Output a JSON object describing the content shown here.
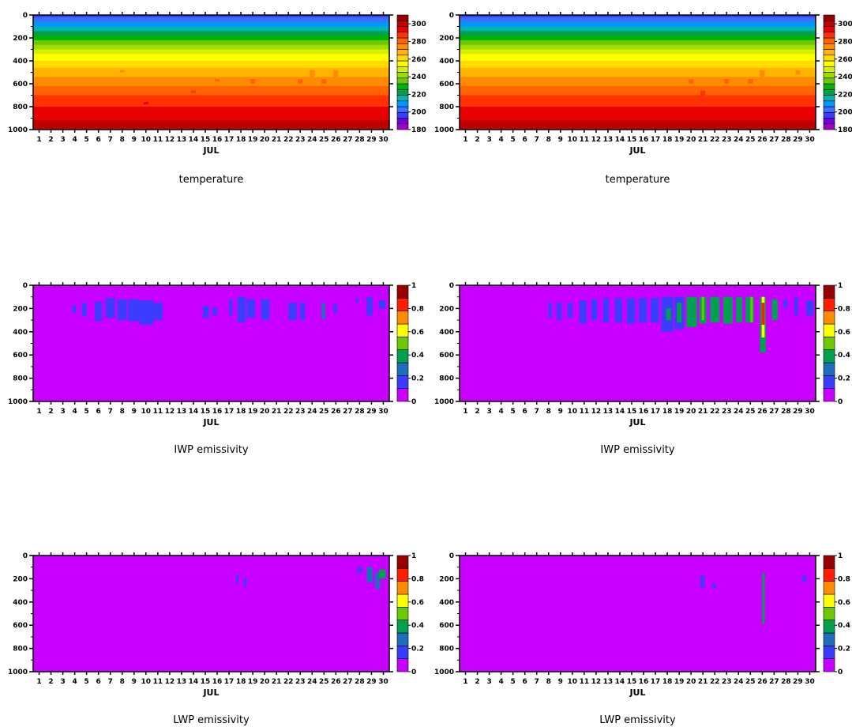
{
  "palettes": {
    "temperature": [
      "#a000c8",
      "#6e00dc",
      "#3c3cff",
      "#3c6eff",
      "#0096ff",
      "#00b4b4",
      "#00a050",
      "#00b400",
      "#6ec800",
      "#a0dc00",
      "#d2f000",
      "#ffff00",
      "#ffdc00",
      "#ffb400",
      "#ff8c00",
      "#ff6400",
      "#ff3200",
      "#e60000",
      "#be0000",
      "#960000"
    ],
    "emissivity": [
      "#c800ff",
      "#3c3cff",
      "#1e6ebe",
      "#00a050",
      "#6ec800",
      "#ffff00",
      "#ff8c00",
      "#ff1e00",
      "#960000"
    ]
  },
  "chart_data": [
    {
      "type": "heatmap",
      "title": "temperature",
      "xlabel": "JUL",
      "ylabel": "",
      "x_ticks": [
        "1",
        "2",
        "3",
        "4",
        "5",
        "6",
        "7",
        "8",
        "9",
        "10",
        "11",
        "12",
        "13",
        "14",
        "15",
        "16",
        "17",
        "18",
        "19",
        "20",
        "21",
        "22",
        "23",
        "24",
        "25",
        "26",
        "27",
        "28",
        "29",
        "30"
      ],
      "y_ticks": [
        "0",
        "200",
        "400",
        "600",
        "800",
        "1000"
      ],
      "ylim": [
        1000,
        0
      ],
      "xlim": [
        0.5,
        30.5
      ],
      "colorbar": {
        "ticks": [
          "180",
          "200",
          "220",
          "240",
          "260",
          "280",
          "300"
        ],
        "range": [
          180,
          310
        ],
        "step": 6.5
      },
      "field": "temperature",
      "perturb": [
        [
          8,
          480,
          20
        ],
        [
          16,
          560,
          20
        ],
        [
          19,
          560,
          40
        ],
        [
          23,
          560,
          40
        ],
        [
          24,
          480,
          80
        ],
        [
          25,
          560,
          40
        ],
        [
          26,
          480,
          80
        ],
        [
          10,
          760,
          20
        ],
        [
          14,
          660,
          20
        ]
      ]
    },
    {
      "type": "heatmap",
      "title": "temperature",
      "xlabel": "JUL",
      "ylabel": "",
      "x_ticks": [
        "1",
        "2",
        "3",
        "4",
        "5",
        "6",
        "7",
        "8",
        "9",
        "10",
        "11",
        "12",
        "13",
        "14",
        "15",
        "16",
        "17",
        "18",
        "19",
        "20",
        "21",
        "22",
        "23",
        "24",
        "25",
        "26",
        "27",
        "28",
        "29",
        "30"
      ],
      "y_ticks": [
        "0",
        "200",
        "400",
        "600",
        "800",
        "1000"
      ],
      "ylim": [
        1000,
        0
      ],
      "xlim": [
        0.5,
        30.5
      ],
      "colorbar": {
        "ticks": [
          "180",
          "200",
          "220",
          "240",
          "260",
          "280",
          "300"
        ],
        "range": [
          180,
          310
        ],
        "step": 6.5
      },
      "field": "temperature",
      "perturb": [
        [
          20,
          560,
          40
        ],
        [
          21,
          660,
          40
        ],
        [
          23,
          560,
          40
        ],
        [
          25,
          560,
          40
        ],
        [
          26,
          480,
          80
        ],
        [
          29,
          480,
          40
        ]
      ]
    },
    {
      "type": "heatmap",
      "title": "IWP emissivity",
      "xlabel": "JUL",
      "ylabel": "",
      "x_ticks": [
        "1",
        "2",
        "3",
        "4",
        "5",
        "6",
        "7",
        "8",
        "9",
        "10",
        "11",
        "12",
        "13",
        "14",
        "15",
        "16",
        "17",
        "18",
        "19",
        "20",
        "21",
        "22",
        "23",
        "24",
        "25",
        "26",
        "27",
        "28",
        "29",
        "30"
      ],
      "y_ticks": [
        "0",
        "200",
        "400",
        "600",
        "800",
        "1000"
      ],
      "ylim": [
        1000,
        0
      ],
      "xlim": [
        0.5,
        30.5
      ],
      "colorbar": {
        "ticks": [
          "0",
          "0.2",
          "0.4",
          "0.6",
          "0.8",
          "1"
        ],
        "range": [
          0,
          1
        ],
        "step": 0.1111
      },
      "field": "emissivity",
      "cloud_patches": [
        {
          "x": [
            3.8,
            4.1
          ],
          "p": [
            170,
            240
          ],
          "v": 0.15
        },
        {
          "x": [
            4.6,
            5.0
          ],
          "p": [
            150,
            270
          ],
          "v": 0.15
        },
        {
          "x": [
            5.7,
            6.3
          ],
          "p": [
            140,
            310
          ],
          "v": 0.15
        },
        {
          "x": [
            6.6,
            7.4
          ],
          "p": [
            110,
            280
          ],
          "v": 0.15
        },
        {
          "x": [
            7.6,
            8.4
          ],
          "p": [
            120,
            300
          ],
          "v": 0.15
        },
        {
          "x": [
            8.5,
            9.5
          ],
          "p": [
            120,
            310
          ],
          "v": 0.15
        },
        {
          "x": [
            9.5,
            10.6
          ],
          "p": [
            130,
            340
          ],
          "v": 0.15
        },
        {
          "x": [
            10.5,
            11.4
          ],
          "p": [
            150,
            300
          ],
          "v": 0.15
        },
        {
          "x": [
            14.8,
            15.3
          ],
          "p": [
            180,
            280
          ],
          "v": 0.15
        },
        {
          "x": [
            15.6,
            16.0
          ],
          "p": [
            190,
            260
          ],
          "v": 0.15
        },
        {
          "x": [
            17.0,
            17.3
          ],
          "p": [
            120,
            260
          ],
          "v": 0.15
        },
        {
          "x": [
            17.7,
            18.4
          ],
          "p": [
            100,
            320
          ],
          "v": 0.15
        },
        {
          "x": [
            18.5,
            19.2
          ],
          "p": [
            120,
            280
          ],
          "v": 0.15
        },
        {
          "x": [
            19.7,
            20.4
          ],
          "p": [
            120,
            300
          ],
          "v": 0.15
        },
        {
          "x": [
            22.0,
            22.7
          ],
          "p": [
            150,
            300
          ],
          "v": 0.15
        },
        {
          "x": [
            23.0,
            23.4
          ],
          "p": [
            150,
            300
          ],
          "v": 0.15
        },
        {
          "x": [
            24.8,
            25.1
          ],
          "p": [
            150,
            290
          ],
          "v": 0.25
        },
        {
          "x": [
            25.8,
            26.1
          ],
          "p": [
            160,
            240
          ],
          "v": 0.15
        },
        {
          "x": [
            27.7,
            27.9
          ],
          "p": [
            110,
            150
          ],
          "v": 0.15
        },
        {
          "x": [
            28.6,
            29.1
          ],
          "p": [
            100,
            260
          ],
          "v": 0.15
        },
        {
          "x": [
            29.6,
            30.2
          ],
          "p": [
            130,
            200
          ],
          "v": 0.15
        }
      ]
    },
    {
      "type": "heatmap",
      "title": "IWP emissivity",
      "xlabel": "JUL",
      "ylabel": "",
      "x_ticks": [
        "1",
        "2",
        "3",
        "4",
        "5",
        "6",
        "7",
        "8",
        "9",
        "10",
        "11",
        "12",
        "13",
        "14",
        "15",
        "16",
        "17",
        "18",
        "19",
        "20",
        "21",
        "22",
        "23",
        "24",
        "25",
        "26",
        "27",
        "28",
        "29",
        "30"
      ],
      "y_ticks": [
        "0",
        "200",
        "400",
        "600",
        "800",
        "1000"
      ],
      "ylim": [
        1000,
        0
      ],
      "xlim": [
        0.5,
        30.5
      ],
      "colorbar": {
        "ticks": [
          "0",
          "0.2",
          "0.4",
          "0.6",
          "0.8",
          "1"
        ],
        "range": [
          0,
          1
        ],
        "step": 0.1111
      },
      "field": "emissivity",
      "cloud_patches": [
        {
          "x": [
            8.0,
            8.3
          ],
          "p": [
            150,
            280
          ],
          "v": 0.15
        },
        {
          "x": [
            8.7,
            9.1
          ],
          "p": [
            150,
            300
          ],
          "v": 0.15
        },
        {
          "x": [
            9.6,
            10.0
          ],
          "p": [
            150,
            280
          ],
          "v": 0.15
        },
        {
          "x": [
            10.6,
            11.2
          ],
          "p": [
            130,
            330
          ],
          "v": 0.15
        },
        {
          "x": [
            11.6,
            12.1
          ],
          "p": [
            120,
            300
          ],
          "v": 0.15
        },
        {
          "x": [
            12.6,
            13.1
          ],
          "p": [
            110,
            320
          ],
          "v": 0.15
        },
        {
          "x": [
            13.6,
            14.2
          ],
          "p": [
            110,
            320
          ],
          "v": 0.15
        },
        {
          "x": [
            14.6,
            15.3
          ],
          "p": [
            110,
            330
          ],
          "v": 0.15
        },
        {
          "x": [
            15.6,
            16.3
          ],
          "p": [
            110,
            320
          ],
          "v": 0.15
        },
        {
          "x": [
            16.6,
            17.3
          ],
          "p": [
            110,
            320
          ],
          "v": 0.15
        },
        {
          "x": [
            17.5,
            18.5
          ],
          "p": [
            100,
            400
          ],
          "v": 0.15
        },
        {
          "x": [
            17.9,
            18.3
          ],
          "p": [
            200,
            300
          ],
          "v": 0.35
        },
        {
          "x": [
            18.6,
            19.4
          ],
          "p": [
            100,
            380
          ],
          "v": 0.15
        },
        {
          "x": [
            18.8,
            19.2
          ],
          "p": [
            150,
            320
          ],
          "v": 0.35
        },
        {
          "x": [
            19.6,
            20.5
          ],
          "p": [
            100,
            360
          ],
          "v": 0.35
        },
        {
          "x": [
            20.7,
            21.3
          ],
          "p": [
            100,
            330
          ],
          "v": 0.35
        },
        {
          "x": [
            20.9,
            21.1
          ],
          "p": [
            100,
            300
          ],
          "v": 0.55
        },
        {
          "x": [
            21.6,
            22.4
          ],
          "p": [
            100,
            320
          ],
          "v": 0.35
        },
        {
          "x": [
            22.7,
            23.5
          ],
          "p": [
            100,
            330
          ],
          "v": 0.35
        },
        {
          "x": [
            23.8,
            24.3
          ],
          "p": [
            100,
            320
          ],
          "v": 0.35
        },
        {
          "x": [
            24.6,
            25.3
          ],
          "p": [
            100,
            320
          ],
          "v": 0.35
        },
        {
          "x": [
            25.0,
            25.2
          ],
          "p": [
            100,
            320
          ],
          "v": 0.55
        },
        {
          "x": [
            25.8,
            26.3
          ],
          "p": [
            100,
            580
          ],
          "v": 0.35
        },
        {
          "x": [
            25.95,
            26.2
          ],
          "p": [
            100,
            450
          ],
          "v": 0.65
        },
        {
          "x": [
            25.95,
            26.2
          ],
          "p": [
            150,
            340
          ],
          "v": 0.8
        },
        {
          "x": [
            26.8,
            27.3
          ],
          "p": [
            120,
            300
          ],
          "v": 0.35
        },
        {
          "x": [
            27.8,
            28.1
          ],
          "p": [
            120,
            200
          ],
          "v": 0.15
        },
        {
          "x": [
            28.7,
            29.0
          ],
          "p": [
            100,
            260
          ],
          "v": 0.15
        },
        {
          "x": [
            29.7,
            30.3
          ],
          "p": [
            130,
            260
          ],
          "v": 0.15
        }
      ]
    },
    {
      "type": "heatmap",
      "title": "LWP emissivity",
      "xlabel": "JUL",
      "ylabel": "",
      "x_ticks": [
        "1",
        "2",
        "3",
        "4",
        "5",
        "6",
        "7",
        "8",
        "9",
        "10",
        "11",
        "12",
        "13",
        "14",
        "15",
        "16",
        "17",
        "18",
        "19",
        "20",
        "21",
        "22",
        "23",
        "24",
        "25",
        "26",
        "27",
        "28",
        "29",
        "30"
      ],
      "y_ticks": [
        "0",
        "200",
        "400",
        "600",
        "800",
        "1000"
      ],
      "ylim": [
        1000,
        0
      ],
      "xlim": [
        0.5,
        30.5
      ],
      "colorbar": {
        "ticks": [
          "0",
          "0.2",
          "0.4",
          "0.6",
          "0.8",
          "1"
        ],
        "range": [
          0,
          1
        ],
        "step": 0.1111
      },
      "field": "emissivity",
      "cloud_patches": [
        {
          "x": [
            17.6,
            17.8
          ],
          "p": [
            160,
            240
          ],
          "v": 0.15
        },
        {
          "x": [
            18.3,
            18.5
          ],
          "p": [
            190,
            270
          ],
          "v": 0.15
        },
        {
          "x": [
            27.8,
            28.2
          ],
          "p": [
            100,
            150
          ],
          "v": 0.15
        },
        {
          "x": [
            28.6,
            29.1
          ],
          "p": [
            100,
            230
          ],
          "v": 0.25
        },
        {
          "x": [
            29.3,
            29.7
          ],
          "p": [
            150,
            290
          ],
          "v": 0.25
        },
        {
          "x": [
            29.6,
            30.2
          ],
          "p": [
            120,
            200
          ],
          "v": 0.4
        }
      ]
    },
    {
      "type": "heatmap",
      "title": "LWP emissivity",
      "xlabel": "JUL",
      "ylabel": "",
      "x_ticks": [
        "1",
        "2",
        "3",
        "4",
        "5",
        "6",
        "7",
        "8",
        "9",
        "10",
        "11",
        "12",
        "13",
        "14",
        "15",
        "16",
        "17",
        "18",
        "19",
        "20",
        "21",
        "22",
        "23",
        "24",
        "25",
        "26",
        "27",
        "28",
        "29",
        "30"
      ],
      "y_ticks": [
        "0",
        "200",
        "400",
        "600",
        "800",
        "1000"
      ],
      "ylim": [
        1000,
        0
      ],
      "xlim": [
        0.5,
        30.5
      ],
      "colorbar": {
        "ticks": [
          "0",
          "0.2",
          "0.4",
          "0.6",
          "0.8",
          "1"
        ],
        "range": [
          0,
          1
        ],
        "step": 0.1111
      },
      "field": "emissivity",
      "cloud_patches": [
        {
          "x": [
            20.8,
            21.1
          ],
          "p": [
            170,
            280
          ],
          "v": 0.15
        },
        {
          "x": [
            21.8,
            22.1
          ],
          "p": [
            240,
            280
          ],
          "v": 0.15
        },
        {
          "x": [
            26.0,
            26.2
          ],
          "p": [
            150,
            590
          ],
          "v": 0.35
        },
        {
          "x": [
            29.4,
            29.7
          ],
          "p": [
            170,
            230
          ],
          "v": 0.15
        }
      ]
    }
  ]
}
